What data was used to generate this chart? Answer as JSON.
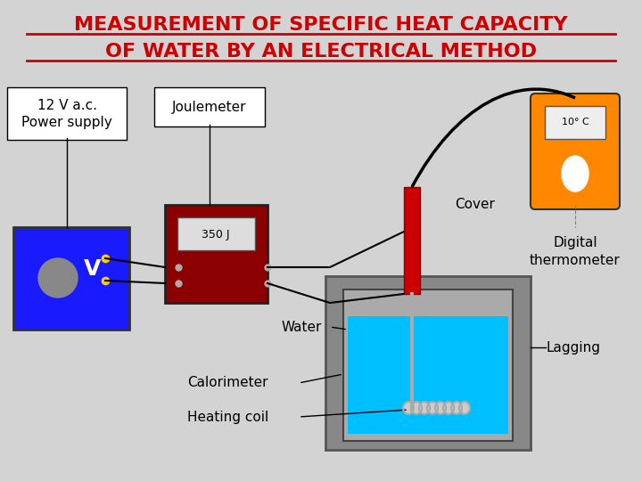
{
  "title_line1": "MEASUREMENT OF SPECIFIC HEAT CAPACITY",
  "title_line2": "OF WATER BY AN ELECTRICAL METHOD",
  "title_color": "#cc0000",
  "bg_color": "#d3d3d3",
  "label_power_supply": "12 V a.c.\nPower supply",
  "label_joulemeter": "Joulemeter",
  "label_joulemeter_reading": "350 J",
  "label_cover": "Cover",
  "label_digital_thermo": "Digital\nthermometer",
  "label_water": "Water",
  "label_lagging": "Lagging",
  "label_calorimeter": "Calorimeter",
  "label_heating_coil": "Heating coil",
  "label_temp": "10° C"
}
